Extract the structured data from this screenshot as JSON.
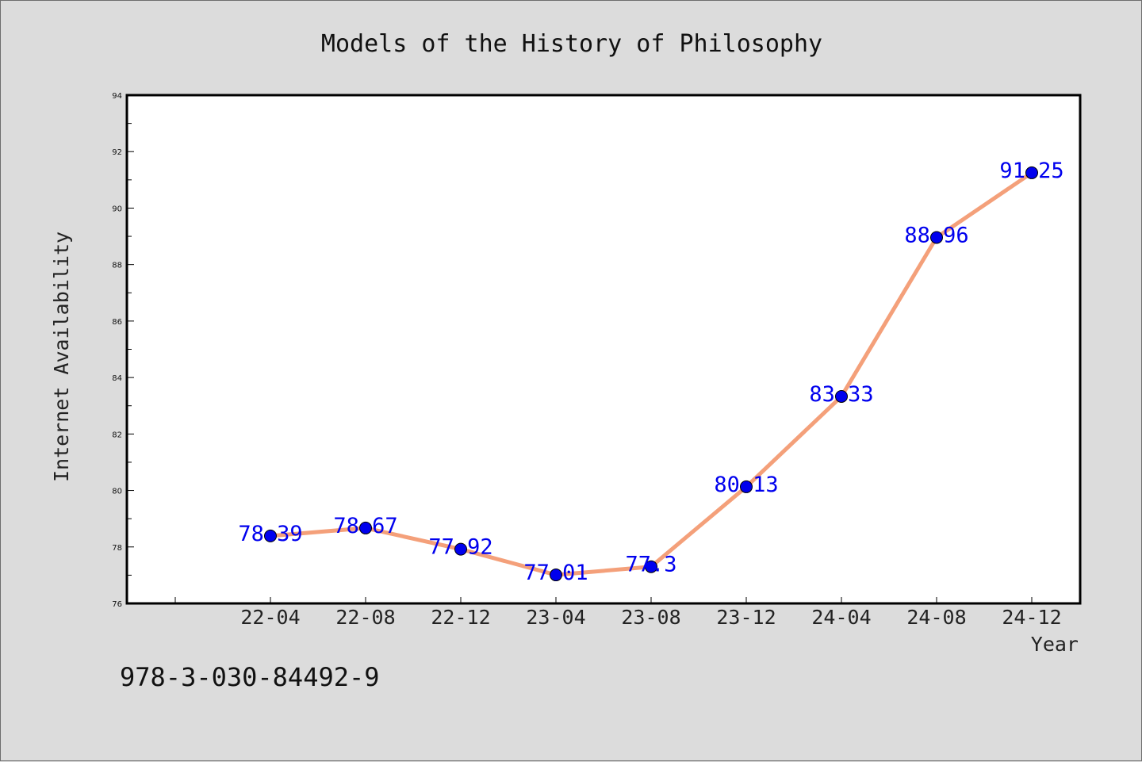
{
  "chart_data": {
    "type": "line",
    "title": "Models of the History of Philosophy",
    "xlabel": "Year",
    "ylabel": "Internet Availability",
    "categories": [
      "22-04",
      "22-08",
      "22-12",
      "23-04",
      "23-08",
      "23-12",
      "24-04",
      "24-08",
      "24-12"
    ],
    "series": [
      {
        "values": [
          78.39,
          78.67,
          77.92,
          77.01,
          77.3,
          80.13,
          83.33,
          88.96,
          91.25
        ],
        "labels": [
          "78.39",
          "78.67",
          "77.92",
          "77.01",
          "77.3",
          "80.13",
          "83.33",
          "88.96",
          "91.25"
        ],
        "line_color": "#f4a07a",
        "marker_color": "#0000ee"
      }
    ],
    "ylim": [
      76,
      94
    ],
    "yticks": [
      "76",
      "78",
      "80",
      "82",
      "84",
      "86",
      "88",
      "90",
      "92",
      "94"
    ],
    "grid": false,
    "legend": "none"
  },
  "footer": {
    "isbn": "978-3-030-84492-9"
  }
}
